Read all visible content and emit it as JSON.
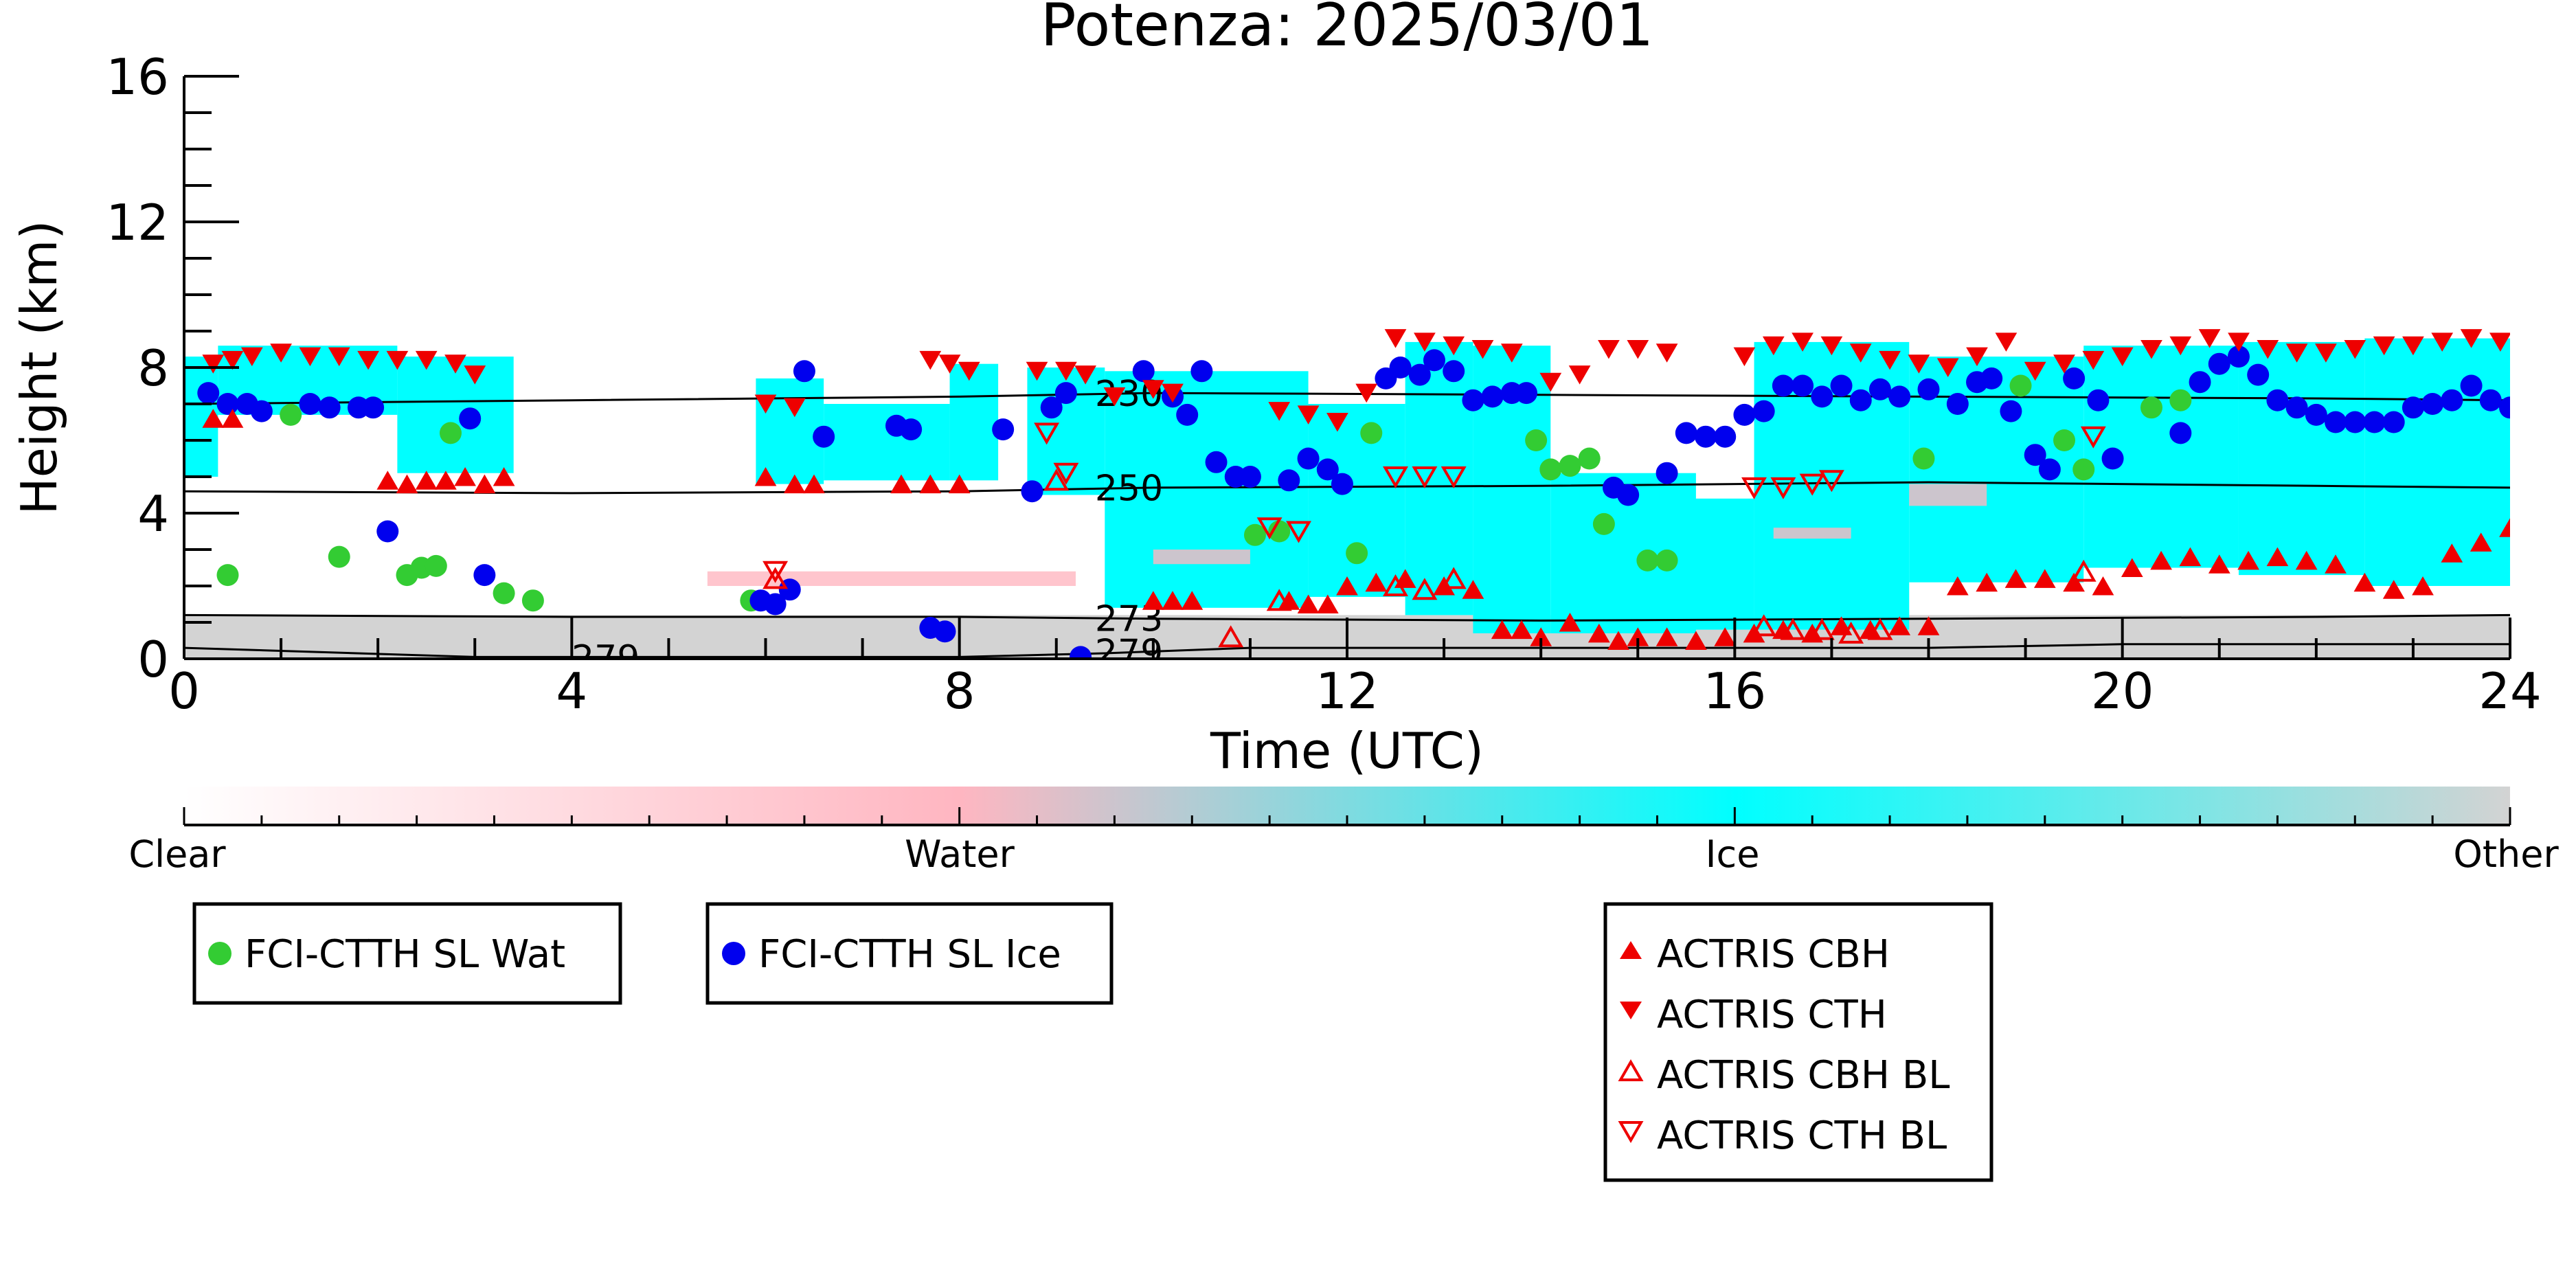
{
  "chart_data": {
    "type": "scatter",
    "title": "Potenza: 2025/03/01",
    "xlabel": "Time (UTC)",
    "ylabel": "Height (km)",
    "xlim": [
      0,
      24
    ],
    "ylim": [
      0,
      16
    ],
    "x_ticks": [
      0,
      4,
      8,
      12,
      16,
      20,
      24
    ],
    "y_ticks": [
      0,
      4,
      8,
      12,
      16
    ],
    "colors": {
      "clear": "#ffffff",
      "water": "#ffb6c1",
      "ice": "#00ffff",
      "other": "#d3d3d3",
      "fci_wat": "#33cc33",
      "fci_ice": "#0000ee",
      "actris": "#ee0000"
    },
    "colorbar": {
      "labels": [
        "Clear",
        "Water",
        "Ice",
        "Other"
      ]
    },
    "contours": [
      {
        "label": "230",
        "label_x": 9.75,
        "points": [
          [
            0,
            7.0
          ],
          [
            4,
            7.1
          ],
          [
            8,
            7.2
          ],
          [
            10,
            7.3
          ],
          [
            14,
            7.25
          ],
          [
            18,
            7.2
          ],
          [
            22,
            7.15
          ],
          [
            24,
            7.1
          ]
        ]
      },
      {
        "label": "250",
        "label_x": 9.75,
        "points": [
          [
            0,
            4.6
          ],
          [
            4,
            4.55
          ],
          [
            8,
            4.6
          ],
          [
            10,
            4.7
          ],
          [
            14,
            4.75
          ],
          [
            18,
            4.85
          ],
          [
            22,
            4.75
          ],
          [
            24,
            4.7
          ]
        ]
      },
      {
        "label": "273",
        "label_x": 9.75,
        "points": [
          [
            0,
            1.2
          ],
          [
            4,
            1.15
          ],
          [
            8,
            1.15
          ],
          [
            10,
            1.1
          ],
          [
            14,
            1.05
          ],
          [
            18,
            1.1
          ],
          [
            22,
            1.15
          ],
          [
            24,
            1.2
          ]
        ]
      },
      {
        "label": "279",
        "label_x": 9.75,
        "points": [
          [
            0,
            0.3
          ],
          [
            3,
            0.05
          ],
          [
            8,
            0.05
          ],
          [
            9.5,
            0.15
          ],
          [
            11,
            0.3
          ],
          [
            14,
            0.3
          ],
          [
            18,
            0.3
          ],
          [
            20,
            0.4
          ],
          [
            24,
            0.4
          ]
        ]
      },
      {
        "label": "279",
        "label_x": 4.35,
        "points": [
          [
            3.5,
            0.02
          ],
          [
            5.2,
            0.02
          ]
        ]
      }
    ],
    "series": [
      {
        "name": "FCI-CTTH SL Wat",
        "marker": "circle",
        "x": [
          0.45,
          1.1,
          1.6,
          2.3,
          2.45,
          2.6,
          2.75,
          3.3,
          3.6,
          5.85,
          11.05,
          11.3,
          12.1,
          12.25,
          13.95,
          14.1,
          14.3,
          14.5,
          14.65,
          15.1,
          15.3,
          17.95,
          18.95,
          19.4,
          19.6,
          20.3,
          20.6
        ],
        "y": [
          2.3,
          6.7,
          2.8,
          2.3,
          2.5,
          2.55,
          6.2,
          1.8,
          1.6,
          1.6,
          3.4,
          3.5,
          2.9,
          6.2,
          6.0,
          5.2,
          5.3,
          5.5,
          3.7,
          2.7,
          2.7,
          5.5,
          7.5,
          6.0,
          5.2,
          6.9,
          7.1
        ]
      },
      {
        "name": "FCI-CTTH SL Ice",
        "marker": "circle",
        "x": [
          0.25,
          0.45,
          0.65,
          0.8,
          1.3,
          1.5,
          1.8,
          1.95,
          2.1,
          2.95,
          3.1,
          5.95,
          6.1,
          6.25,
          6.4,
          6.6,
          7.35,
          7.5,
          7.7,
          7.85,
          8.45,
          8.75,
          8.95,
          9.1,
          9.25,
          9.9,
          10.2,
          10.35,
          10.5,
          10.65,
          10.85,
          11.0,
          11.4,
          11.6,
          11.8,
          11.95,
          12.4,
          12.55,
          12.75,
          12.9,
          13.1,
          13.3,
          13.5,
          13.7,
          13.85,
          14.75,
          14.9,
          15.3,
          15.5,
          15.7,
          15.9,
          16.1,
          16.3,
          16.5,
          16.7,
          16.9,
          17.1,
          17.3,
          17.5,
          17.7,
          18.0,
          18.3,
          18.5,
          18.65,
          18.85,
          19.1,
          19.25,
          19.5,
          19.75,
          19.9,
          20.6,
          20.8,
          21.0,
          21.2,
          21.4,
          21.6,
          21.8,
          22.0,
          22.2,
          22.4,
          22.6,
          22.8,
          23.0,
          23.2,
          23.4,
          23.6,
          23.8,
          24.0
        ],
        "y": [
          7.3,
          7.0,
          7.0,
          6.8,
          7.0,
          6.9,
          6.9,
          6.9,
          3.5,
          6.6,
          2.3,
          1.6,
          1.5,
          1.9,
          7.9,
          6.1,
          6.4,
          6.3,
          0.85,
          0.75,
          6.3,
          4.6,
          6.9,
          7.3,
          0.05,
          7.9,
          7.2,
          6.7,
          7.9,
          5.4,
          5.0,
          5.0,
          4.9,
          5.5,
          5.2,
          4.8,
          7.7,
          8.0,
          7.8,
          8.2,
          7.9,
          7.1,
          7.2,
          7.3,
          7.3,
          4.7,
          4.5,
          5.1,
          6.2,
          6.1,
          6.1,
          6.7,
          6.8,
          7.5,
          7.5,
          7.2,
          7.5,
          7.1,
          7.4,
          7.2,
          7.4,
          7.0,
          7.6,
          7.7,
          6.8,
          5.6,
          5.2,
          7.7,
          7.1,
          5.5,
          6.2,
          7.6,
          8.1,
          8.3,
          7.8,
          7.1,
          6.9,
          6.7,
          6.5,
          6.5,
          6.5,
          6.5,
          6.9,
          7.0,
          7.1,
          7.5,
          7.1,
          6.9
        ]
      },
      {
        "name": "ACTRIS CBH",
        "marker": "triangle-up",
        "x": [
          0.3,
          0.5,
          2.1,
          2.3,
          2.5,
          2.7,
          2.9,
          3.1,
          3.3,
          6.0,
          6.3,
          6.5,
          7.4,
          7.7,
          8.0,
          10.0,
          10.2,
          10.4,
          11.4,
          11.6,
          11.8,
          12.0,
          12.3,
          12.6,
          13.0,
          13.3,
          13.6,
          13.8,
          14.0,
          14.3,
          14.6,
          14.8,
          15.0,
          15.3,
          15.6,
          15.9,
          16.2,
          16.5,
          16.8,
          17.1,
          17.4,
          17.7,
          18.0,
          18.3,
          18.6,
          18.9,
          19.2,
          19.5,
          19.8,
          20.1,
          20.4,
          20.7,
          21.0,
          21.3,
          21.6,
          21.9,
          22.2,
          22.5,
          22.8,
          23.1,
          23.4,
          23.7,
          24.0
        ],
        "y": [
          6.6,
          6.6,
          4.9,
          4.8,
          4.9,
          4.9,
          5.0,
          4.8,
          5.0,
          5.0,
          4.8,
          4.8,
          4.8,
          4.8,
          4.8,
          1.6,
          1.6,
          1.6,
          1.6,
          1.5,
          1.5,
          2.0,
          2.1,
          2.2,
          2.0,
          1.9,
          0.8,
          0.8,
          0.6,
          1.0,
          0.7,
          0.5,
          0.6,
          0.6,
          0.5,
          0.6,
          0.7,
          0.8,
          0.7,
          0.9,
          0.8,
          0.9,
          0.9,
          2.0,
          2.1,
          2.2,
          2.2,
          2.1,
          2.0,
          2.5,
          2.7,
          2.8,
          2.6,
          2.7,
          2.8,
          2.7,
          2.6,
          2.1,
          1.9,
          2.0,
          2.9,
          3.2,
          3.6
        ]
      },
      {
        "name": "ACTRIS CTH",
        "marker": "triangle-down",
        "x": [
          0.3,
          0.5,
          0.7,
          1.0,
          1.3,
          1.6,
          1.9,
          2.2,
          2.5,
          2.8,
          3.0,
          6.0,
          6.3,
          7.7,
          7.9,
          8.1,
          8.8,
          9.1,
          9.3,
          9.6,
          10.0,
          10.2,
          11.3,
          11.6,
          11.9,
          12.2,
          12.5,
          12.8,
          13.1,
          13.4,
          13.7,
          14.1,
          14.4,
          14.7,
          15.0,
          15.3,
          16.1,
          16.4,
          16.7,
          17.0,
          17.3,
          17.6,
          17.9,
          18.2,
          18.5,
          18.8,
          19.1,
          19.4,
          19.7,
          20.0,
          20.3,
          20.6,
          20.9,
          21.2,
          21.5,
          21.8,
          22.1,
          22.4,
          22.7,
          23.0,
          23.3,
          23.6,
          23.9
        ],
        "y": [
          8.1,
          8.2,
          8.3,
          8.4,
          8.3,
          8.3,
          8.2,
          8.2,
          8.2,
          8.1,
          7.8,
          7.0,
          6.9,
          8.2,
          8.1,
          7.9,
          7.9,
          7.9,
          7.8,
          7.2,
          7.4,
          7.3,
          6.8,
          6.7,
          6.5,
          7.3,
          8.8,
          8.7,
          8.6,
          8.5,
          8.4,
          7.6,
          7.8,
          8.5,
          8.5,
          8.4,
          8.3,
          8.6,
          8.7,
          8.6,
          8.4,
          8.2,
          8.1,
          8.0,
          8.3,
          8.7,
          7.9,
          8.1,
          8.2,
          8.3,
          8.5,
          8.6,
          8.8,
          8.7,
          8.5,
          8.4,
          8.4,
          8.5,
          8.6,
          8.6,
          8.7,
          8.8,
          8.7
        ]
      },
      {
        "name": "ACTRIS CBH BL",
        "marker": "triangle-up-open",
        "x": [
          6.1,
          9.0,
          10.8,
          11.3,
          12.5,
          12.8,
          13.1,
          16.3,
          16.6,
          16.9,
          17.2,
          17.5,
          19.6
        ],
        "y": [
          2.2,
          4.9,
          0.6,
          1.6,
          2.0,
          1.9,
          2.2,
          0.9,
          0.8,
          0.8,
          0.7,
          0.8,
          2.4
        ]
      },
      {
        "name": "ACTRIS CTH BL",
        "marker": "triangle-down-open",
        "x": [
          6.1,
          8.9,
          9.1,
          11.2,
          11.5,
          12.5,
          12.8,
          13.1,
          16.2,
          16.5,
          16.8,
          17.0,
          19.7
        ],
        "y": [
          2.4,
          6.2,
          5.1,
          3.6,
          3.5,
          5.0,
          5.0,
          5.0,
          4.7,
          4.7,
          4.8,
          4.9,
          6.1
        ]
      }
    ],
    "legend": {
      "boxes": [
        [
          "FCI-CTTH SL Wat"
        ],
        [
          "FCI-CTTH SL Ice"
        ],
        [
          "ACTRIS CBH",
          "ACTRIS CTH",
          "ACTRIS CBH BL",
          "ACTRIS CTH BL"
        ]
      ],
      "placement": "below"
    },
    "grid": false
  }
}
